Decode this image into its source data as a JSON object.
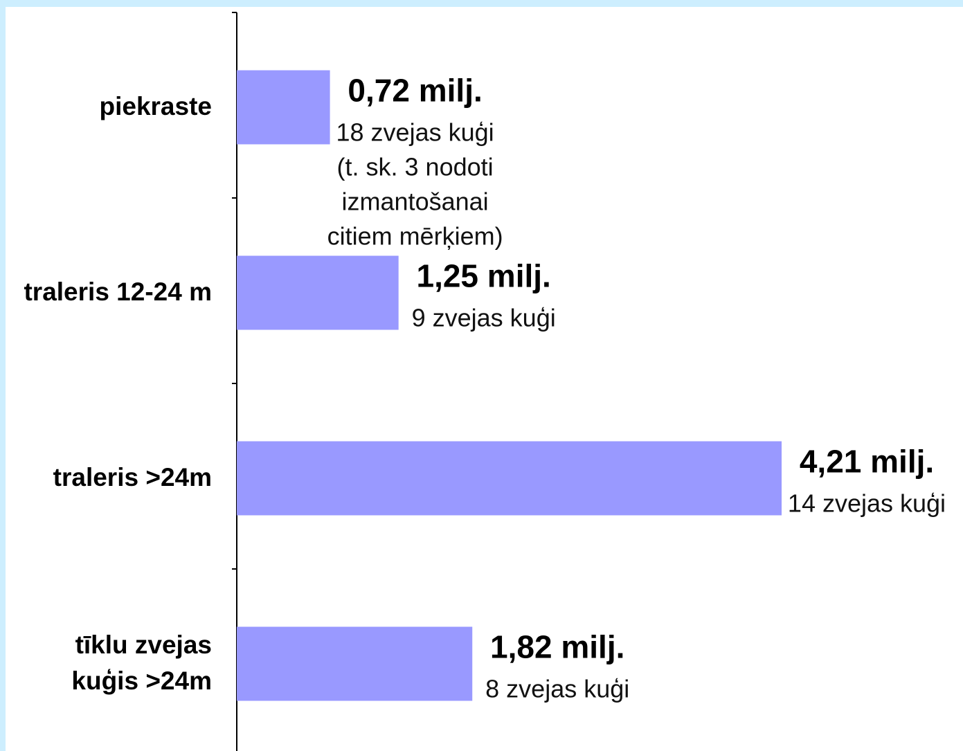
{
  "chart_data": {
    "type": "bar",
    "orientation": "horizontal",
    "categories": [
      [
        "piekraste"
      ],
      [
        "traleris 12-24 m"
      ],
      [
        "traleris >24m"
      ],
      [
        "tīklu zvejas",
        "kuģis >24m"
      ]
    ],
    "values": [
      0.72,
      1.25,
      4.21,
      1.82
    ],
    "value_labels": [
      "0,72 milj.",
      "1,25 milj.",
      "4,21 milj.",
      "1,82 milj."
    ],
    "notes": [
      [
        "18 zvejas kuģi",
        "(t. sk. 3 nodoti",
        "izmantošanai",
        "citiem mērķiem)"
      ],
      [
        "9 zvejas kuģi"
      ],
      [
        "14 zvejas kuģi"
      ],
      [
        "8 zvejas kuģi"
      ]
    ],
    "xlim": [
      0,
      4.21
    ],
    "grid": false,
    "legend": false
  },
  "colors": {
    "bar": "#9999ff",
    "page_background": "#cdeefe",
    "plot_background": "#ffffff",
    "axis": "#000000"
  }
}
